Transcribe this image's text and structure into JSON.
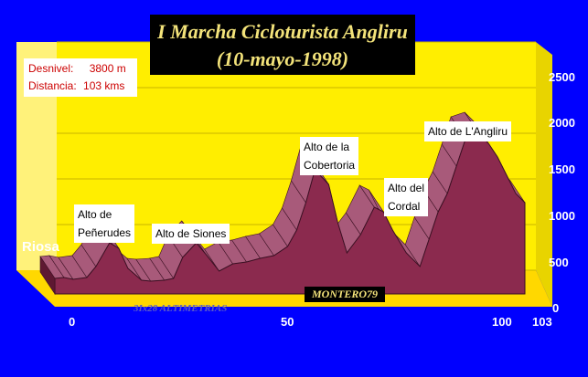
{
  "chart_data": {
    "type": "area",
    "title": "I Marcha Cicloturista Angliru",
    "subtitle": "(10-mayo-1998)",
    "xlabel": "",
    "ylabel": "",
    "x_ticks": [
      "0",
      "50",
      "100",
      "103"
    ],
    "y_ticks": [
      "0",
      "500",
      "1000",
      "1500",
      "2000",
      "2500"
    ],
    "xlim": [
      0,
      103
    ],
    "ylim": [
      0,
      2500
    ],
    "grid": true,
    "x": [
      0,
      2,
      4,
      7,
      9,
      12,
      14,
      16,
      19,
      21,
      24,
      26,
      28,
      31,
      33,
      36,
      39,
      42,
      45,
      48,
      51,
      53,
      55,
      57,
      60,
      62,
      64,
      67,
      70,
      72,
      74,
      77,
      80,
      82,
      84,
      86,
      88,
      90,
      93,
      95,
      97,
      99,
      101,
      103
    ],
    "values": [
      170,
      180,
      160,
      180,
      300,
      560,
      500,
      280,
      150,
      140,
      150,
      170,
      400,
      560,
      440,
      250,
      330,
      350,
      390,
      420,
      520,
      700,
      1000,
      1360,
      1200,
      780,
      450,
      650,
      950,
      900,
      700,
      450,
      300,
      600,
      900,
      1100,
      1400,
      1700,
      1750,
      1650,
      1500,
      1300,
      1100,
      1000
    ],
    "start_label": "Riosa",
    "summary": {
      "desnivel_label": "Desnivel:",
      "desnivel_value": "3800 m",
      "distancia_label": "Distancia:",
      "distancia_value": "103 kms"
    },
    "annotations": [
      {
        "line1": "Alto de",
        "line2": "Peñerudes"
      },
      {
        "line1": "Alto de Siones",
        "line2": ""
      },
      {
        "line1": "Alto de la",
        "line2": "Cobertoria"
      },
      {
        "line1": "Alto del",
        "line2": "Cordal"
      },
      {
        "line1": "Alto de L'Angliru",
        "line2": ""
      }
    ],
    "credit": "MONTERO79",
    "footer_credit": "3Ix28 ALTIMETRIAS"
  },
  "colors": {
    "background": "#0000ff",
    "wall": "#ffee00",
    "floor": "#ffd800",
    "profile_front": "#8b2a4e",
    "profile_top": "#a85a7a",
    "title_text": "#f3e37a"
  }
}
